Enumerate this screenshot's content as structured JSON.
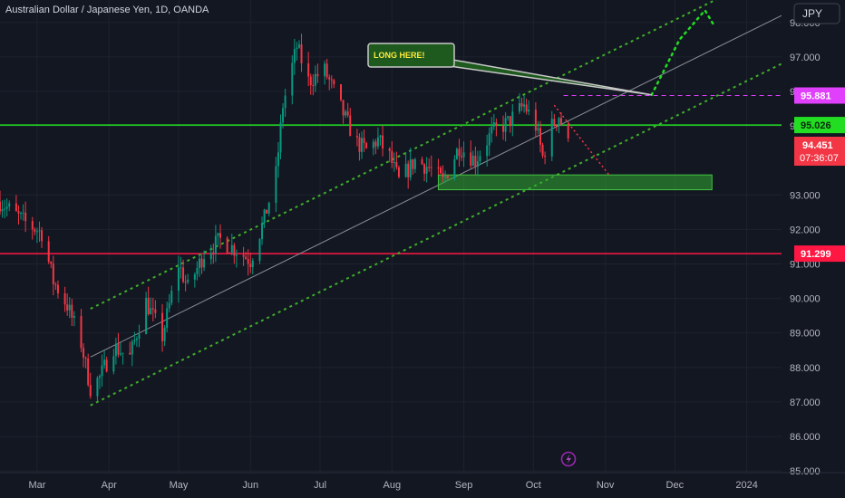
{
  "header": {
    "title": "Australian Dollar / Japanese Yen, 1D, OANDA"
  },
  "currency_button": "JPY",
  "colors": {
    "bg": "#131722",
    "up": "#089981",
    "down": "#f23645",
    "channel": "#3fae2a",
    "green_level": "#22dd22",
    "red_level": "#ff1744",
    "magenta": "#e040fb"
  },
  "annotation": {
    "text": "LONG HERE!"
  },
  "price_tags": {
    "target": "95.881",
    "resistance": "95.026",
    "last": "94.451",
    "countdown": "07:36:07",
    "support": "91.299"
  },
  "bottom_icon": "lightning-icon",
  "chart_data": {
    "type": "candlestick",
    "title": "Australian Dollar / Japanese Yen, 1D, OANDA",
    "ylim": [
      84.95,
      98.65
    ],
    "y_ticks": [
      "85.000",
      "86.000",
      "87.000",
      "88.000",
      "89.000",
      "90.000",
      "91.000",
      "92.000",
      "93.000",
      "95.000",
      "96.000",
      "97.000",
      "98.000"
    ],
    "x_ticks": [
      "Mar",
      "Apr",
      "May",
      "Jun",
      "Jul",
      "Aug",
      "Sep",
      "Oct",
      "Nov",
      "Dec",
      "2024"
    ],
    "x_start": "2023-02-13",
    "x_end": "2024-01-16",
    "levels": {
      "resistance": 95.026,
      "support": 91.299,
      "target": 95.881,
      "last": 94.451
    },
    "series_keypoints": [
      [
        "2023-02-13",
        92.8
      ],
      [
        "2023-02-24",
        92.2
      ],
      [
        "2023-03-03",
        91.9
      ],
      [
        "2023-03-08",
        90.5
      ],
      [
        "2023-03-14",
        89.8
      ],
      [
        "2023-03-20",
        88.7
      ],
      [
        "2023-03-24",
        87.4
      ],
      [
        "2023-03-28",
        87.7
      ],
      [
        "2023-04-03",
        88.6
      ],
      [
        "2023-04-10",
        88.3
      ],
      [
        "2023-04-17",
        89.9
      ],
      [
        "2023-04-24",
        88.9
      ],
      [
        "2023-05-01",
        91.0
      ],
      [
        "2023-05-05",
        90.3
      ],
      [
        "2023-05-12",
        91.3
      ],
      [
        "2023-05-19",
        91.7
      ],
      [
        "2023-05-26",
        91.4
      ],
      [
        "2023-06-01",
        91.1
      ],
      [
        "2023-06-07",
        92.3
      ],
      [
        "2023-06-12",
        93.6
      ],
      [
        "2023-06-15",
        95.6
      ],
      [
        "2023-06-21",
        97.3
      ],
      [
        "2023-06-26",
        96.3
      ],
      [
        "2023-07-03",
        96.6
      ],
      [
        "2023-07-07",
        96.0
      ],
      [
        "2023-07-12",
        95.2
      ],
      [
        "2023-07-17",
        94.5
      ],
      [
        "2023-07-21",
        94.3
      ],
      [
        "2023-07-26",
        94.6
      ],
      [
        "2023-07-31",
        94.1
      ],
      [
        "2023-08-04",
        93.4
      ],
      [
        "2023-08-11",
        94.0
      ],
      [
        "2023-08-17",
        93.8
      ],
      [
        "2023-08-23",
        93.4
      ],
      [
        "2023-08-30",
        94.4
      ],
      [
        "2023-09-06",
        94.0
      ],
      [
        "2023-09-13",
        94.8
      ],
      [
        "2023-09-20",
        95.1
      ],
      [
        "2023-09-27",
        95.6
      ],
      [
        "2023-10-02",
        95.0
      ],
      [
        "2023-10-05",
        94.1
      ],
      [
        "2023-10-09",
        95.0
      ],
      [
        "2023-10-12",
        95.3
      ],
      [
        "2023-10-16",
        94.451
      ]
    ],
    "channel": {
      "lower": [
        [
          "2023-03-24",
          86.9
        ],
        [
          "2024-01-16",
          96.8
        ]
      ],
      "upper": [
        [
          "2023-03-24",
          89.7
        ],
        [
          "2024-01-16",
          99.6
        ]
      ],
      "mid": [
        [
          "2023-03-24",
          88.3
        ],
        [
          "2024-01-16",
          98.2
        ]
      ]
    },
    "projection_up": [
      [
        "2023-11-21",
        95.9
      ],
      [
        "2023-12-03",
        97.5
      ],
      [
        "2023-12-14",
        98.35
      ],
      [
        "2023-12-18",
        97.9
      ]
    ],
    "projection_down": [
      [
        "2023-10-10",
        95.6
      ],
      [
        "2023-11-03",
        93.55
      ]
    ],
    "demand_zone": {
      "x0": "2023-08-21",
      "x1": "2023-12-17",
      "y0": 93.15,
      "y1": 93.58
    }
  }
}
